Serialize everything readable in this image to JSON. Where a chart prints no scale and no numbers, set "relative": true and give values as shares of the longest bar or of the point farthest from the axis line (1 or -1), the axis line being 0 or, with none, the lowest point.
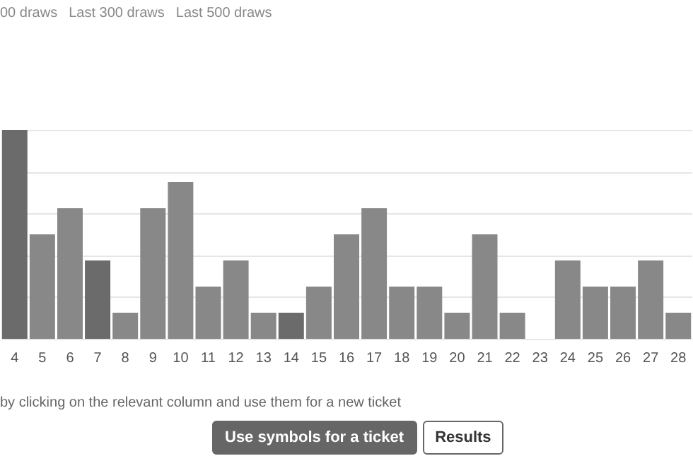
{
  "chart_data": {
    "type": "bar",
    "relative": true,
    "grid": "y",
    "categories": [
      "4",
      "5",
      "6",
      "7",
      "8",
      "9",
      "10",
      "11",
      "12",
      "13",
      "14",
      "15",
      "16",
      "17",
      "18",
      "19",
      "20",
      "21",
      "22",
      "23",
      "24",
      "25",
      "26",
      "27",
      "28"
    ],
    "values": [
      1,
      0.5,
      0.625,
      0.375,
      0.125,
      0.625,
      0.75,
      0.25,
      0.375,
      0.125,
      0.125,
      0.25,
      0.5,
      0.625,
      0.25,
      0.25,
      0.125,
      0.5,
      0.125,
      0,
      0.375,
      0.25,
      0.25,
      0.375,
      0.125
    ],
    "colors": [
      "#6b6b6b",
      "#888888",
      "#888888",
      "#6b6b6b",
      "#888888",
      "#888888",
      "#888888",
      "#888888",
      "#888888",
      "#888888",
      "#6b6b6b",
      "#888888",
      "#888888",
      "#888888",
      "#888888",
      "#888888",
      "#888888",
      "#888888",
      "#888888",
      "#888888",
      "#888888",
      "#888888",
      "#888888",
      "#888888",
      "#888888"
    ],
    "annotations": [
      "00 draws",
      "Last 300 draws",
      "Last 500 draws",
      "by clicking on the relevant column and use them for a new ticket",
      "Use symbols for a ticket",
      "Results"
    ]
  }
}
